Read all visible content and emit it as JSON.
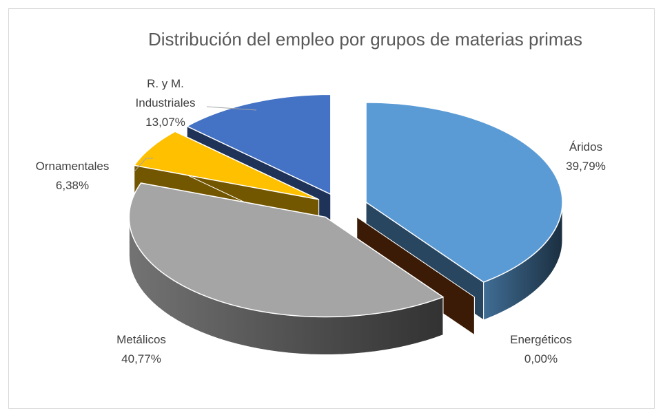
{
  "chart_data": {
    "type": "pie3d",
    "title": "Distribución del empleo por grupos de materias primas",
    "categories": [
      "Áridos",
      "Energéticos",
      "Metálicos",
      "Ornamentales",
      "R. y M. Industriales"
    ],
    "values": [
      39.79,
      0.0,
      40.77,
      6.38,
      13.07
    ],
    "value_labels": [
      "39,79%",
      "0,00%",
      "40,77%",
      "6,38%",
      "13,07%"
    ],
    "colors": [
      "#5b9bd5",
      "#843c0c",
      "#a5a5a5",
      "#ffc000",
      "#4472c4"
    ],
    "exploded": true
  }
}
